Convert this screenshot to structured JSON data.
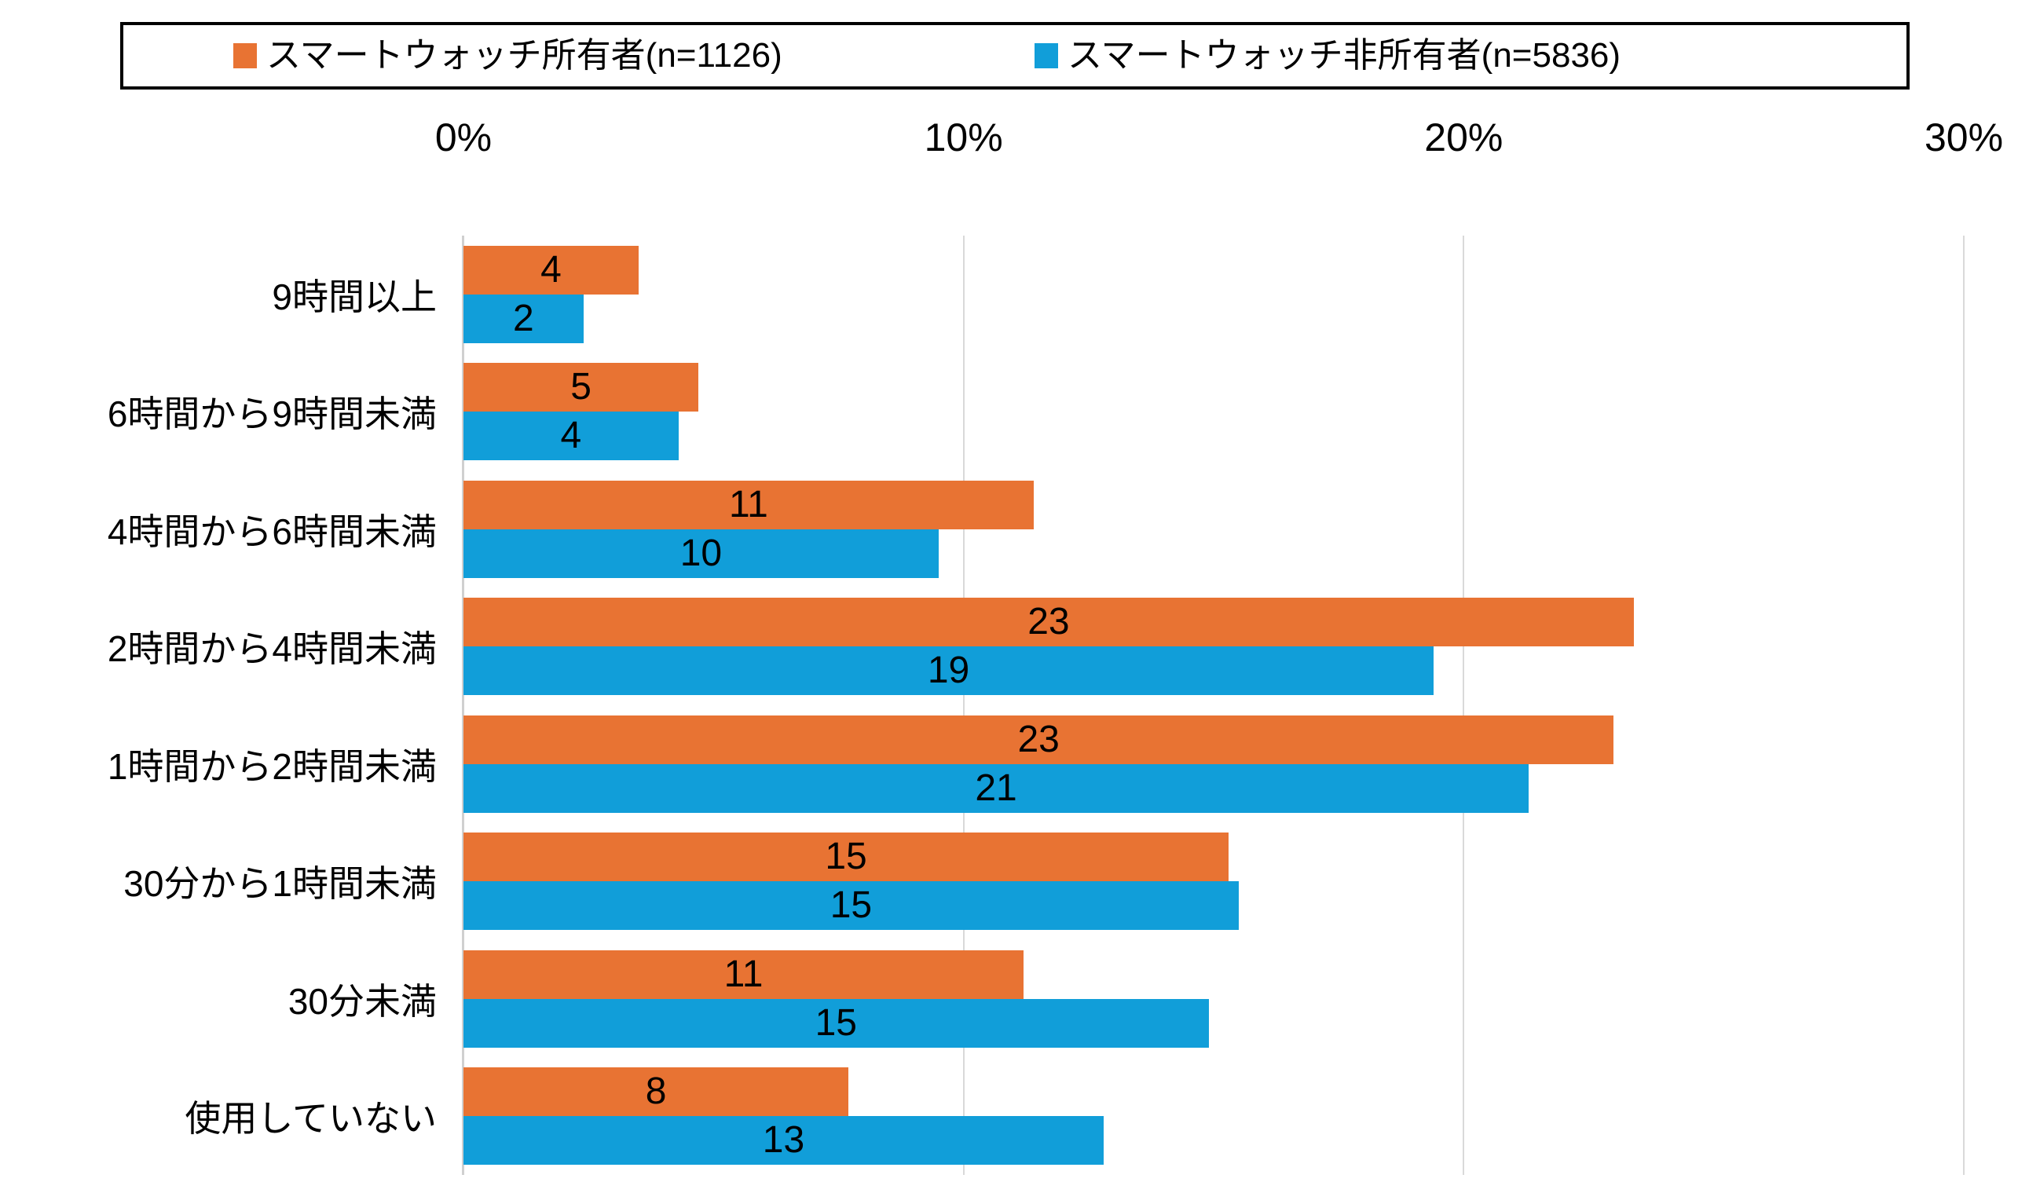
{
  "chart_data": {
    "type": "bar",
    "orientation": "horizontal",
    "grouped": true,
    "title": "",
    "categories": [
      "9時間以上",
      "6時間から9時間未満",
      "4時間から6時間未満",
      "2時間から4時間未満",
      "1時間から2時間未満",
      "30分から1時間未満",
      "30分未満",
      "使用していない"
    ],
    "series": [
      {
        "name": "スマートウォッチ所有者(n=1126)",
        "color": "#E87333",
        "values": [
          4,
          5,
          11,
          23,
          23,
          15,
          11,
          8
        ],
        "bar_lengths_pct": [
          3.5,
          4.7,
          11.4,
          23.4,
          23.0,
          15.3,
          11.2,
          7.7
        ]
      },
      {
        "name": "スマートウォッチ非所有者(n=5836)",
        "color": "#119ED9",
        "values": [
          2,
          4,
          10,
          19,
          21,
          15,
          15,
          13
        ],
        "bar_lengths_pct": [
          2.4,
          4.3,
          9.5,
          19.4,
          21.3,
          15.5,
          14.9,
          12.8
        ]
      }
    ],
    "x_axis": {
      "tick_labels": [
        "0%",
        "10%",
        "20%",
        "30%"
      ],
      "tick_values": [
        0,
        10,
        20,
        30
      ],
      "min": 0,
      "max": 30,
      "unit": "%",
      "position": "top"
    },
    "ylabel": "",
    "xlabel": "",
    "grid": true,
    "gridline_color": "#D9D9D9",
    "axis_line_color": "#D0D0D0",
    "data_labels": "inside-center",
    "data_label_color": "#000000",
    "legend_position": "top",
    "legend_border_color": "#000000",
    "background_color": "#FFFFFF"
  }
}
